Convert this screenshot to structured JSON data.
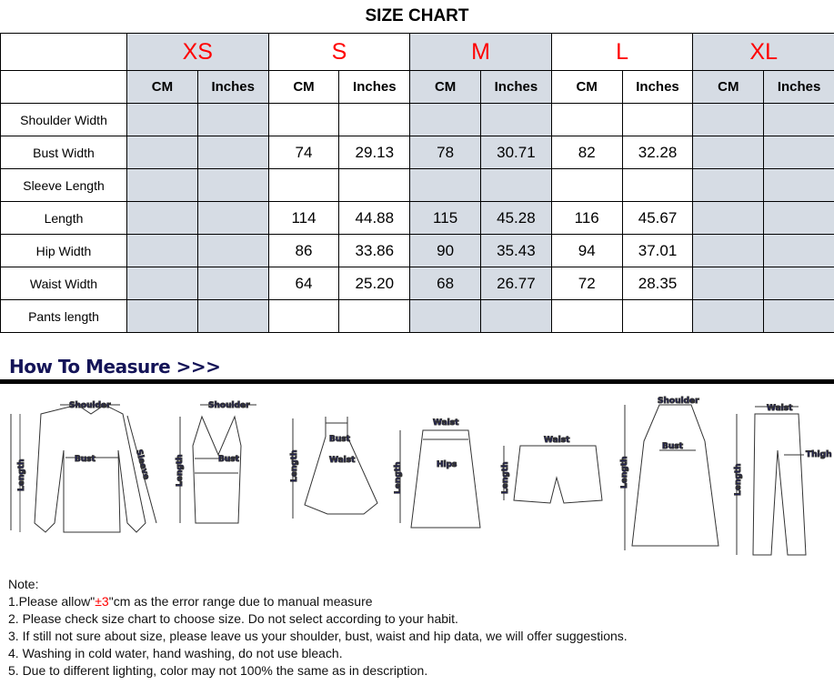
{
  "title": "SIZE CHART",
  "sizes": [
    "XS",
    "S",
    "M",
    "L",
    "XL"
  ],
  "shaded_sizes": [
    "XS",
    "M",
    "XL"
  ],
  "units": [
    "CM",
    "Inches"
  ],
  "colors": {
    "size_label": "#ff0000",
    "shade": "#d6dce4",
    "measure_heading": "#141458"
  },
  "rows": [
    {
      "label": "Shoulder Width",
      "values": [
        "",
        "",
        "",
        "",
        "",
        "",
        "",
        "",
        "",
        ""
      ]
    },
    {
      "label": "Bust Width",
      "values": [
        "",
        "",
        "74",
        "29.13",
        "78",
        "30.71",
        "82",
        "32.28",
        "",
        ""
      ]
    },
    {
      "label": "Sleeve Length",
      "values": [
        "",
        "",
        "",
        "",
        "",
        "",
        "",
        "",
        "",
        ""
      ]
    },
    {
      "label": "Length",
      "values": [
        "",
        "",
        "114",
        "44.88",
        "115",
        "45.28",
        "116",
        "45.67",
        "",
        ""
      ]
    },
    {
      "label": "Hip Width",
      "values": [
        "",
        "",
        "86",
        "33.86",
        "90",
        "35.43",
        "94",
        "37.01",
        "",
        ""
      ]
    },
    {
      "label": "Waist Width",
      "values": [
        "",
        "",
        "64",
        "25.20",
        "68",
        "26.77",
        "72",
        "28.35",
        "",
        ""
      ]
    },
    {
      "label": "Pants length",
      "values": [
        "",
        "",
        "",
        "",
        "",
        "",
        "",
        "",
        "",
        ""
      ]
    }
  ],
  "how_to_measure": {
    "heading": "How To Measure >>>",
    "labels": {
      "shoulder": "Shoulder",
      "bust": "Bust",
      "sleeve": "Sleeve",
      "length": "Length",
      "waist": "Waist",
      "hips": "Hips",
      "thigh": "Thigh"
    }
  },
  "notes": {
    "heading": "Note:",
    "n1_pre": "1.Please allow\"",
    "n1_red": "±3",
    "n1_post": "\"cm as the error range due to manual measure",
    "n2": "2. Please check size chart to choose size. Do not select according to your habit.",
    "n3": "3. If still not sure about size, please leave us your shoulder, bust, waist and hip data, we will offer suggestions.",
    "n4": "4. Washing in cold water, hand washing, do not use bleach.",
    "n5": "5. Due to different lighting, color may not 100% the same as in description."
  }
}
